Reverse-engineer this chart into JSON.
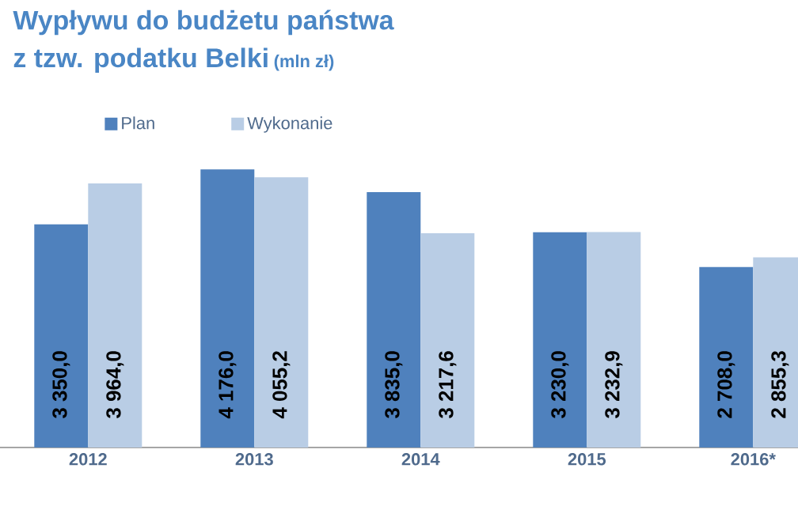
{
  "chart_data": {
    "type": "bar",
    "title": "Wypływu do budżetu państwa",
    "subtitle": "z tzw. podatku Belki",
    "annotations": [
      "(mln zł)"
    ],
    "categories": [
      "2012",
      "2013",
      "2014",
      "2015",
      "2016*"
    ],
    "series": [
      {
        "name": "Plan",
        "color": "#4f81bd",
        "values": [
          3350.0,
          4176.0,
          3835.0,
          3230.0,
          2708.0
        ],
        "value_labels": [
          "3 350,0",
          "4 176,0",
          "3 835,0",
          "3 230,0",
          "2 708,0"
        ]
      },
      {
        "name": "Wykonanie",
        "color": "#b9cde5",
        "values": [
          3964.0,
          4055.2,
          3217.6,
          3232.9,
          2855.3
        ],
        "value_labels": [
          "3 964,0",
          "4 055,2",
          "3 217,6",
          "3 232,9",
          "2 855,3"
        ]
      }
    ],
    "legend": "top left"
  }
}
